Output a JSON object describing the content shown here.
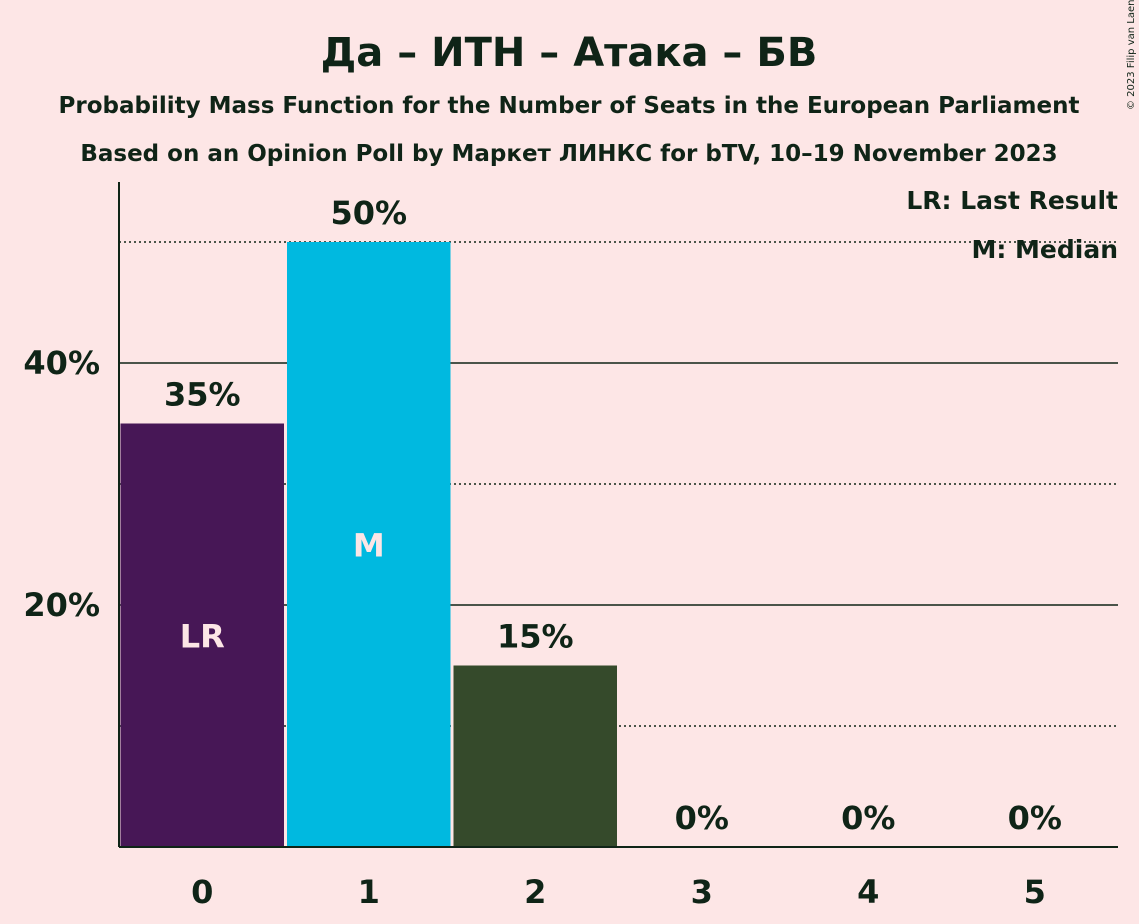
{
  "chart_data": {
    "type": "bar",
    "title": "Да – ИТН – Атака – БВ",
    "subtitle_line1": "Probability Mass Function for the Number of Seats in the European Parliament",
    "subtitle_line2": "Based on an Opinion Poll by Маркет ЛИНКС for bTV, 10–19 November 2023",
    "copyright": "© 2023 Filip van Laenen",
    "categories": [
      "0",
      "1",
      "2",
      "3",
      "4",
      "5"
    ],
    "values": [
      35,
      50,
      15,
      0,
      0,
      0
    ],
    "value_labels": [
      "35%",
      "50%",
      "15%",
      "0%",
      "0%",
      "0%"
    ],
    "bar_colors": [
      "#471756",
      "#00b9e0",
      "#354a2b",
      "#354a2b",
      "#354a2b",
      "#354a2b"
    ],
    "bar_inner_labels": [
      "LR",
      "M",
      "",
      "",
      "",
      ""
    ],
    "last_result_index": 0,
    "median_index": 1,
    "ylim": [
      0,
      55
    ],
    "y_ticks": [
      {
        "value": 20,
        "label": "20%"
      },
      {
        "value": 40,
        "label": "40%"
      }
    ],
    "y_dotted_gridlines": [
      10,
      30,
      50
    ],
    "legend": {
      "position": "top-right",
      "items": [
        "LR: Last Result",
        "M: Median"
      ]
    },
    "grid": true,
    "xlabel": "",
    "ylabel": ""
  }
}
